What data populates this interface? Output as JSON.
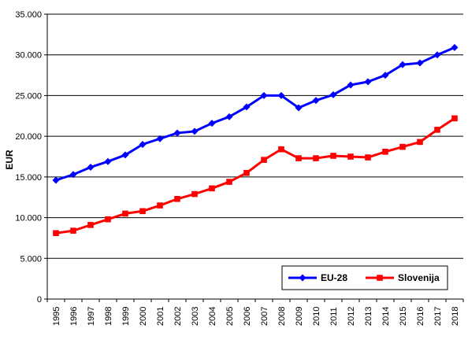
{
  "chart_data": {
    "type": "line",
    "title": "",
    "xlabel": "",
    "ylabel": "EUR",
    "ylim": [
      0,
      35000
    ],
    "y_ticks": [
      0,
      5000,
      10000,
      15000,
      20000,
      25000,
      30000,
      35000
    ],
    "y_tick_labels": [
      "0",
      "5.000",
      "10.000",
      "15.000",
      "20.000",
      "25.000",
      "30.000",
      "35.000"
    ],
    "grid": "horizontal",
    "legend_position": "bottom-right",
    "x": [
      "1995",
      "1996",
      "1997",
      "1998",
      "1999",
      "2000",
      "2001",
      "2002",
      "2003",
      "2004",
      "2005",
      "2006",
      "2007",
      "2008",
      "2009",
      "2010",
      "2011",
      "2012",
      "2013",
      "2014",
      "2015",
      "2016",
      "2017",
      "2018"
    ],
    "series": [
      {
        "name": "EU-28",
        "color": "#0000ff",
        "marker": "diamond",
        "values": [
          14600,
          15300,
          16200,
          16900,
          17700,
          19000,
          19700,
          20400,
          20600,
          21600,
          22400,
          23600,
          25000,
          25000,
          23500,
          24400,
          25100,
          26300,
          26700,
          27500,
          28800,
          29000,
          30000,
          30900
        ]
      },
      {
        "name": "Slovenija",
        "color": "#ff0000",
        "marker": "square",
        "values": [
          8100,
          8400,
          9100,
          9800,
          10500,
          10800,
          11500,
          12300,
          12900,
          13600,
          14400,
          15500,
          17100,
          18400,
          17300,
          17300,
          17600,
          17500,
          17400,
          18100,
          18700,
          19300,
          20800,
          22200
        ]
      }
    ]
  }
}
